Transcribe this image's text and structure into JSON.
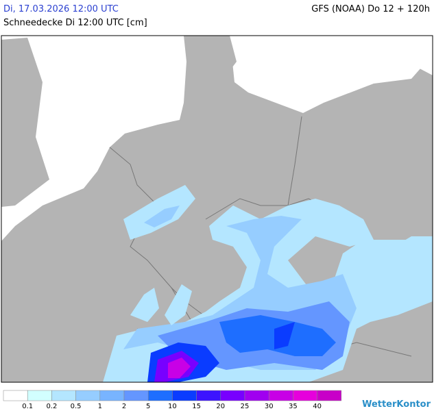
{
  "header": {
    "date": "Di, 17.03.2026 12:00 UTC",
    "title": "Schneedecke Di 12:00 UTC [cm]",
    "model": "GFS (NOAA) Do 12 + 120h"
  },
  "legend": {
    "colors": [
      "#ffffff",
      "#d2ffff",
      "#b4e6ff",
      "#96cdff",
      "#78b4ff",
      "#6496ff",
      "#1e6eff",
      "#0a3cff",
      "#3c14ff",
      "#7800ff",
      "#a000f0",
      "#c800e6",
      "#e600dc",
      "#c800c8"
    ],
    "labels": [
      "0.1",
      "0.2",
      "0.5",
      "1",
      "2",
      "5",
      "10",
      "15",
      "20",
      "25",
      "30",
      "35",
      "40"
    ]
  },
  "brand": "WetterKontor"
}
